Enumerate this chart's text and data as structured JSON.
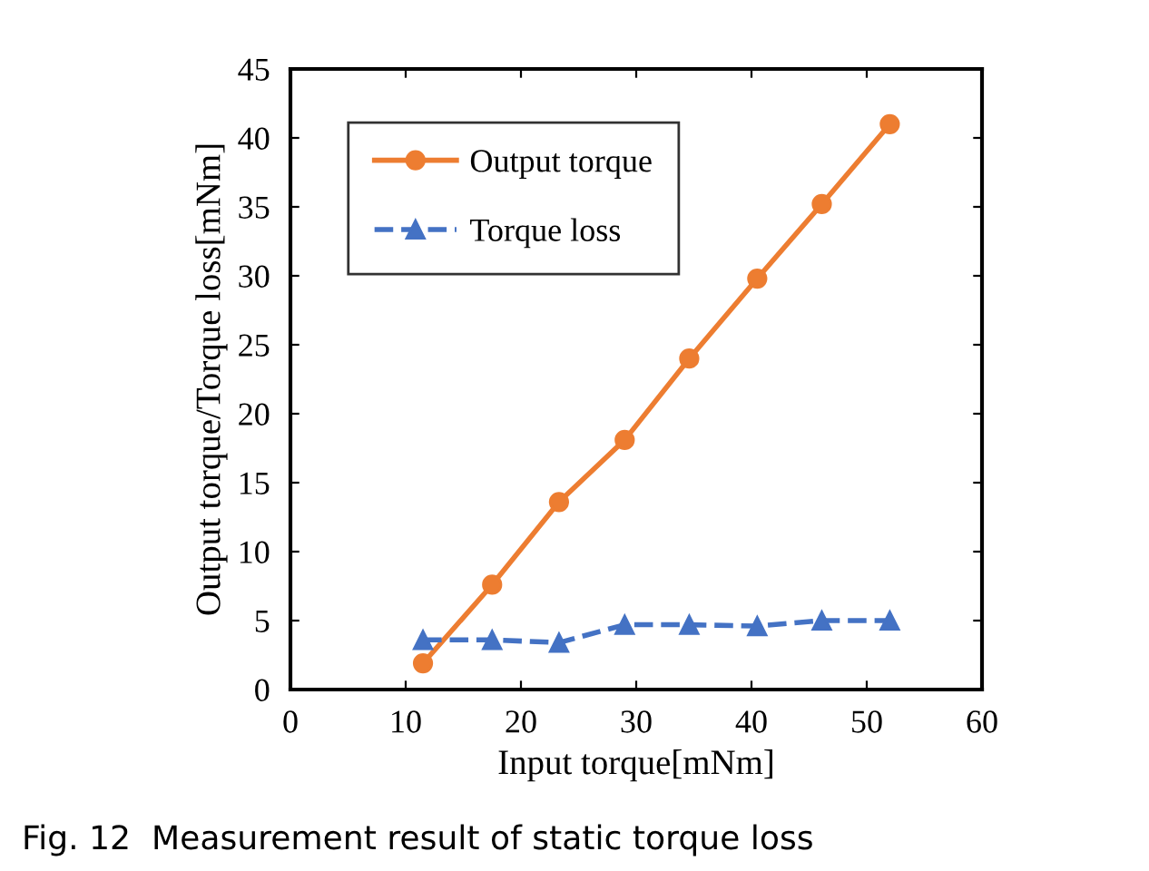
{
  "chart_data": {
    "type": "line",
    "xlabel": "Input torque[mNm]",
    "ylabel": "Output torque/Torque loss[mNm]",
    "x": [
      11.5,
      17.5,
      23.3,
      29,
      34.6,
      40.5,
      46.1,
      52
    ],
    "series": [
      {
        "name": "Output torque",
        "color": "#ed7d31",
        "values": [
          1.9,
          7.6,
          13.6,
          18.1,
          24,
          29.8,
          35.2,
          41
        ],
        "marker": "circle",
        "line_style": "solid"
      },
      {
        "name": "Torque loss",
        "color": "#4472c4",
        "values": [
          3.6,
          3.6,
          3.4,
          4.7,
          4.7,
          4.6,
          5.0,
          5.0
        ],
        "marker": "triangle",
        "line_style": "dashed"
      }
    ],
    "xlim": [
      0,
      60
    ],
    "xticks": [
      0,
      10,
      20,
      30,
      40,
      50,
      60
    ],
    "ylim": [
      0,
      45
    ],
    "yticks": [
      0,
      5,
      10,
      15,
      20,
      25,
      30,
      35,
      40,
      45
    ],
    "grid": false,
    "legend": "top left",
    "annotations": [
      "Fig. 12  Measurement result of static torque loss"
    ]
  }
}
